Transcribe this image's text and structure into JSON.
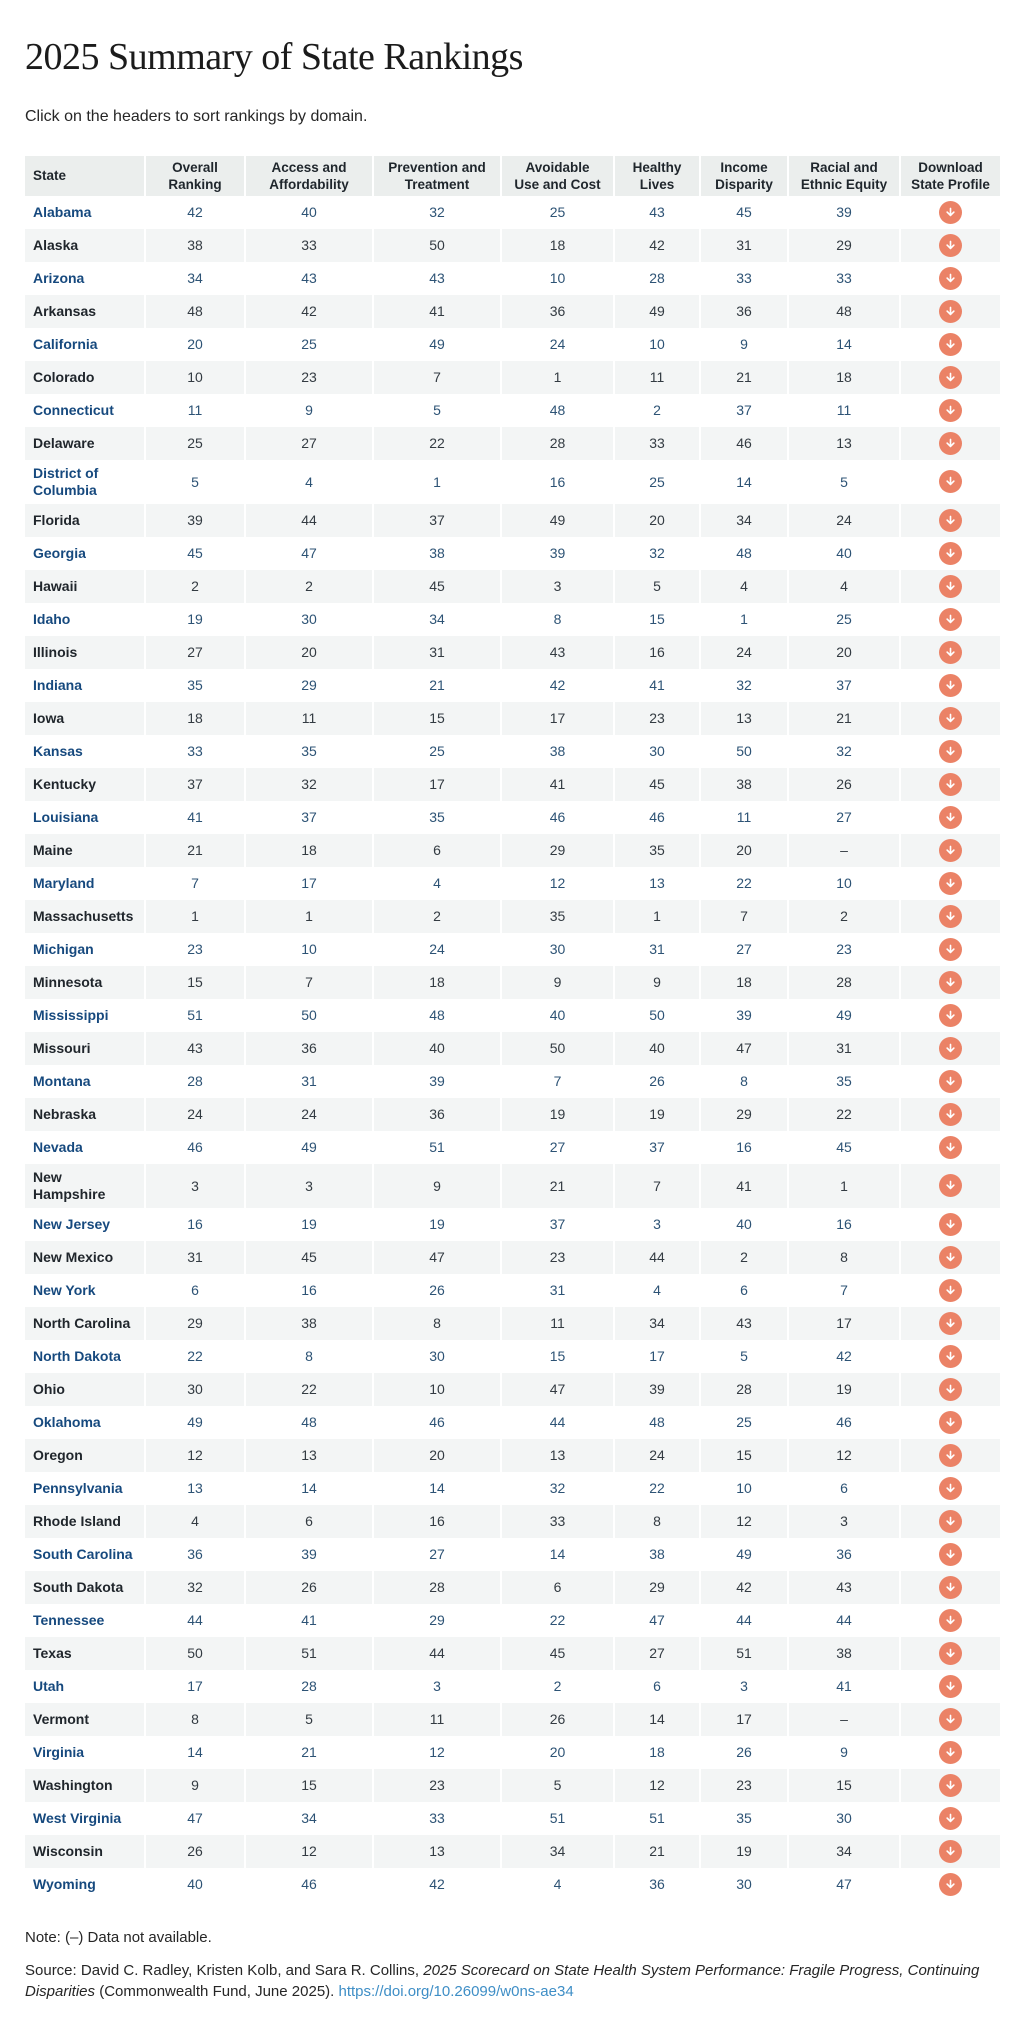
{
  "page": {
    "title": "2025 Summary of State Rankings",
    "subtitle": "Click on the headers to sort rankings by domain.",
    "note": "Note: (–) Data not available.",
    "source": {
      "prefix": "Source: David C. Radley, Kristen Kolb, and Sara R. Collins, ",
      "report_title": "2025 Scorecard on State Health System Performance: Fragile Progress, Continuing Disparities",
      "suffix": " (Commonwealth Fund, June 2025). ",
      "link_text": "https://doi.org/10.26099/w0ns-ae34"
    }
  },
  "colors": {
    "accent_coral": "#EB8266",
    "link_blue": "#3E8EC6",
    "state_link_navy": "#16497E",
    "header_bg": "#EBEEED",
    "stripe_bg": "#F3F5F5"
  },
  "table": {
    "columns": [
      {
        "key": "state",
        "label": "State"
      },
      {
        "key": "overall-ranking",
        "label": "Overall\nRanking"
      },
      {
        "key": "access-and-affordability",
        "label": "Access and\nAffordability"
      },
      {
        "key": "prevention-and-treatment",
        "label": "Prevention and\nTreatment"
      },
      {
        "key": "avoidable-use-and-cost",
        "label": "Avoidable\nUse and Cost"
      },
      {
        "key": "healthy-lives",
        "label": "Healthy\nLives"
      },
      {
        "key": "income-disparity",
        "label": "Income\nDisparity"
      },
      {
        "key": "racial-and-ethnic-equity",
        "label": "Racial and\nEthnic Equity"
      },
      {
        "key": "download-state-profile",
        "label": "Download\nState Profile"
      }
    ],
    "download_icon": "down-arrow-in-circle",
    "not_available_symbol": "–",
    "rows": [
      {
        "state": "Alabama",
        "values": [
          "42",
          "40",
          "32",
          "25",
          "43",
          "45",
          "39"
        ]
      },
      {
        "state": "Alaska",
        "values": [
          "38",
          "33",
          "50",
          "18",
          "42",
          "31",
          "29"
        ]
      },
      {
        "state": "Arizona",
        "values": [
          "34",
          "43",
          "43",
          "10",
          "28",
          "33",
          "33"
        ]
      },
      {
        "state": "Arkansas",
        "values": [
          "48",
          "42",
          "41",
          "36",
          "49",
          "36",
          "48"
        ]
      },
      {
        "state": "California",
        "values": [
          "20",
          "25",
          "49",
          "24",
          "10",
          "9",
          "14"
        ]
      },
      {
        "state": "Colorado",
        "values": [
          "10",
          "23",
          "7",
          "1",
          "11",
          "21",
          "18"
        ]
      },
      {
        "state": "Connecticut",
        "values": [
          "11",
          "9",
          "5",
          "48",
          "2",
          "37",
          "11"
        ]
      },
      {
        "state": "Delaware",
        "values": [
          "25",
          "27",
          "22",
          "28",
          "33",
          "46",
          "13"
        ]
      },
      {
        "state": "District of Columbia",
        "state_display": "District of\nColumbia",
        "values": [
          "5",
          "4",
          "1",
          "16",
          "25",
          "14",
          "5"
        ]
      },
      {
        "state": "Florida",
        "values": [
          "39",
          "44",
          "37",
          "49",
          "20",
          "34",
          "24"
        ]
      },
      {
        "state": "Georgia",
        "values": [
          "45",
          "47",
          "38",
          "39",
          "32",
          "48",
          "40"
        ]
      },
      {
        "state": "Hawaii",
        "values": [
          "2",
          "2",
          "45",
          "3",
          "5",
          "4",
          "4"
        ]
      },
      {
        "state": "Idaho",
        "values": [
          "19",
          "30",
          "34",
          "8",
          "15",
          "1",
          "25"
        ]
      },
      {
        "state": "Illinois",
        "values": [
          "27",
          "20",
          "31",
          "43",
          "16",
          "24",
          "20"
        ]
      },
      {
        "state": "Indiana",
        "values": [
          "35",
          "29",
          "21",
          "42",
          "41",
          "32",
          "37"
        ]
      },
      {
        "state": "Iowa",
        "values": [
          "18",
          "11",
          "15",
          "17",
          "23",
          "13",
          "21"
        ]
      },
      {
        "state": "Kansas",
        "values": [
          "33",
          "35",
          "25",
          "38",
          "30",
          "50",
          "32"
        ]
      },
      {
        "state": "Kentucky",
        "values": [
          "37",
          "32",
          "17",
          "41",
          "45",
          "38",
          "26"
        ]
      },
      {
        "state": "Louisiana",
        "values": [
          "41",
          "37",
          "35",
          "46",
          "46",
          "11",
          "27"
        ]
      },
      {
        "state": "Maine",
        "values": [
          "21",
          "18",
          "6",
          "29",
          "35",
          "20",
          "–"
        ]
      },
      {
        "state": "Maryland",
        "values": [
          "7",
          "17",
          "4",
          "12",
          "13",
          "22",
          "10"
        ]
      },
      {
        "state": "Massachusetts",
        "values": [
          "1",
          "1",
          "2",
          "35",
          "1",
          "7",
          "2"
        ]
      },
      {
        "state": "Michigan",
        "values": [
          "23",
          "10",
          "24",
          "30",
          "31",
          "27",
          "23"
        ]
      },
      {
        "state": "Minnesota",
        "values": [
          "15",
          "7",
          "18",
          "9",
          "9",
          "18",
          "28"
        ]
      },
      {
        "state": "Mississippi",
        "values": [
          "51",
          "50",
          "48",
          "40",
          "50",
          "39",
          "49"
        ]
      },
      {
        "state": "Missouri",
        "values": [
          "43",
          "36",
          "40",
          "50",
          "40",
          "47",
          "31"
        ]
      },
      {
        "state": "Montana",
        "values": [
          "28",
          "31",
          "39",
          "7",
          "26",
          "8",
          "35"
        ]
      },
      {
        "state": "Nebraska",
        "values": [
          "24",
          "24",
          "36",
          "19",
          "19",
          "29",
          "22"
        ]
      },
      {
        "state": "Nevada",
        "values": [
          "46",
          "49",
          "51",
          "27",
          "37",
          "16",
          "45"
        ]
      },
      {
        "state": "New Hampshire",
        "state_display": "New\nHampshire",
        "values": [
          "3",
          "3",
          "9",
          "21",
          "7",
          "41",
          "1"
        ]
      },
      {
        "state": "New Jersey",
        "values": [
          "16",
          "19",
          "19",
          "37",
          "3",
          "40",
          "16"
        ]
      },
      {
        "state": "New Mexico",
        "values": [
          "31",
          "45",
          "47",
          "23",
          "44",
          "2",
          "8"
        ]
      },
      {
        "state": "New York",
        "values": [
          "6",
          "16",
          "26",
          "31",
          "4",
          "6",
          "7"
        ]
      },
      {
        "state": "North Carolina",
        "values": [
          "29",
          "38",
          "8",
          "11",
          "34",
          "43",
          "17"
        ]
      },
      {
        "state": "North Dakota",
        "values": [
          "22",
          "8",
          "30",
          "15",
          "17",
          "5",
          "42"
        ]
      },
      {
        "state": "Ohio",
        "values": [
          "30",
          "22",
          "10",
          "47",
          "39",
          "28",
          "19"
        ]
      },
      {
        "state": "Oklahoma",
        "values": [
          "49",
          "48",
          "46",
          "44",
          "48",
          "25",
          "46"
        ]
      },
      {
        "state": "Oregon",
        "values": [
          "12",
          "13",
          "20",
          "13",
          "24",
          "15",
          "12"
        ]
      },
      {
        "state": "Pennsylvania",
        "values": [
          "13",
          "14",
          "14",
          "32",
          "22",
          "10",
          "6"
        ]
      },
      {
        "state": "Rhode Island",
        "values": [
          "4",
          "6",
          "16",
          "33",
          "8",
          "12",
          "3"
        ]
      },
      {
        "state": "South Carolina",
        "values": [
          "36",
          "39",
          "27",
          "14",
          "38",
          "49",
          "36"
        ]
      },
      {
        "state": "South Dakota",
        "values": [
          "32",
          "26",
          "28",
          "6",
          "29",
          "42",
          "43"
        ]
      },
      {
        "state": "Tennessee",
        "values": [
          "44",
          "41",
          "29",
          "22",
          "47",
          "44",
          "44"
        ]
      },
      {
        "state": "Texas",
        "values": [
          "50",
          "51",
          "44",
          "45",
          "27",
          "51",
          "38"
        ]
      },
      {
        "state": "Utah",
        "values": [
          "17",
          "28",
          "3",
          "2",
          "6",
          "3",
          "41"
        ]
      },
      {
        "state": "Vermont",
        "values": [
          "8",
          "5",
          "11",
          "26",
          "14",
          "17",
          "–"
        ]
      },
      {
        "state": "Virginia",
        "values": [
          "14",
          "21",
          "12",
          "20",
          "18",
          "26",
          "9"
        ]
      },
      {
        "state": "Washington",
        "values": [
          "9",
          "15",
          "23",
          "5",
          "12",
          "23",
          "15"
        ]
      },
      {
        "state": "West Virginia",
        "values": [
          "47",
          "34",
          "33",
          "51",
          "51",
          "35",
          "30"
        ]
      },
      {
        "state": "Wisconsin",
        "values": [
          "26",
          "12",
          "13",
          "34",
          "21",
          "19",
          "34"
        ]
      },
      {
        "state": "Wyoming",
        "values": [
          "40",
          "46",
          "42",
          "4",
          "36",
          "30",
          "47"
        ]
      }
    ]
  }
}
